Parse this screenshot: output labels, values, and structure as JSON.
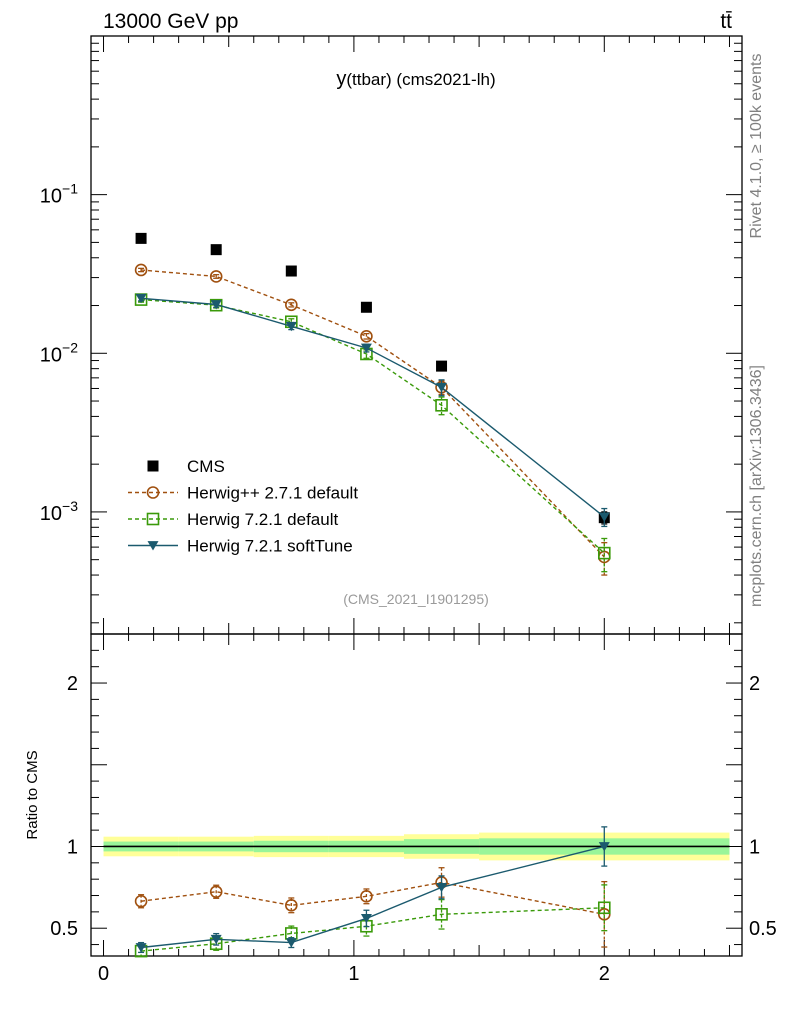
{
  "header": {
    "energy_label": "13000 GeV pp",
    "process_label": "tt̄"
  },
  "side_labels": {
    "rivet": "Rivet 4.1.0, ≥ 100k events",
    "mcplots": "mcplots.cern.ch [arXiv:1306.3436]"
  },
  "chart_data": {
    "type": "line",
    "title_main": "y",
    "title_rest": "(ttbar) (cms2021-lh)",
    "watermark": "(CMS_2021_I1901295)",
    "x": [
      0.15,
      0.45,
      0.75,
      1.05,
      1.35,
      2.0
    ],
    "x_edges": [
      0.0,
      0.3,
      0.6,
      0.9,
      1.2,
      1.5,
      2.5
    ],
    "xlim": [
      -0.05,
      2.55
    ],
    "xticks": [
      {
        "v": 0,
        "label": "0"
      },
      {
        "v": 1,
        "label": "1"
      },
      {
        "v": 2,
        "label": "2"
      }
    ],
    "main": {
      "yscale": "log",
      "ylim": [
        0.00017,
        1.0
      ],
      "yticks": [
        {
          "v": 0.1,
          "base": "10",
          "exp": "−1"
        },
        {
          "v": 0.01,
          "base": "10",
          "exp": "−2"
        },
        {
          "v": 0.001,
          "base": "10",
          "exp": "−3"
        }
      ]
    },
    "ratio": {
      "ylabel": "Ratio to CMS",
      "ylim": [
        0.33,
        2.3
      ],
      "yticks": [
        {
          "v": 0.5,
          "label": "0.5"
        },
        {
          "v": 1,
          "label": "1"
        },
        {
          "v": 2,
          "label": "2"
        }
      ],
      "band_inner": [
        0.03,
        0.03,
        0.035,
        0.035,
        0.045,
        0.05
      ],
      "band_outer": [
        0.06,
        0.06,
        0.065,
        0.065,
        0.075,
        0.085
      ]
    },
    "series": [
      {
        "name": "CMS",
        "color": "#000000",
        "marker": "square-filled",
        "line": "none",
        "values": [
          0.053,
          0.045,
          0.033,
          0.0195,
          0.0083,
          0.00092
        ],
        "errors": [
          0.002,
          0.002,
          0.0015,
          0.001,
          0.0004,
          8e-05
        ],
        "ratio": [
          1,
          1,
          1,
          1,
          1,
          1
        ],
        "ratio_err": [
          0,
          0,
          0,
          0,
          0,
          0
        ]
      },
      {
        "name": "Herwig++ 2.7.1 default",
        "color": "#a0500f",
        "marker": "circle-open",
        "line": "dashed",
        "values": [
          0.0335,
          0.0305,
          0.0202,
          0.0128,
          0.0061,
          0.00052
        ],
        "errors": [
          0.0008,
          0.0008,
          0.0006,
          0.0005,
          0.0006,
          0.00012
        ],
        "ratio": [
          0.665,
          0.723,
          0.64,
          0.695,
          0.78,
          0.585
        ],
        "ratio_err": [
          0.04,
          0.04,
          0.045,
          0.045,
          0.09,
          0.2
        ]
      },
      {
        "name": "Herwig 7.2.1 default",
        "color": "#3a9a0a",
        "marker": "square-open",
        "line": "dashed",
        "values": [
          0.0218,
          0.0201,
          0.0158,
          0.0099,
          0.0047,
          0.00055
        ],
        "errors": [
          0.0008,
          0.0008,
          0.0007,
          0.0006,
          0.0006,
          0.00013
        ],
        "ratio": [
          0.36,
          0.405,
          0.468,
          0.512,
          0.585,
          0.625
        ],
        "ratio_err": [
          0.04,
          0.04,
          0.045,
          0.06,
          0.09,
          0.14
        ]
      },
      {
        "name": "Herwig 7.2.1 softTune",
        "color": "#1b5a6e",
        "marker": "triangle-down-filled",
        "line": "solid",
        "values": [
          0.0222,
          0.0203,
          0.0148,
          0.0108,
          0.0061,
          0.00093
        ],
        "errors": [
          0.0008,
          0.0008,
          0.0007,
          0.0006,
          0.0007,
          0.00012
        ],
        "ratio": [
          0.382,
          0.432,
          0.412,
          0.56,
          0.75,
          1.0
        ],
        "ratio_err": [
          0.03,
          0.035,
          0.03,
          0.05,
          0.07,
          0.12
        ]
      }
    ]
  }
}
